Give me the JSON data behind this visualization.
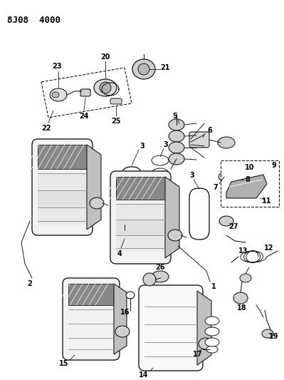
{
  "title": "8J08 4000",
  "bg_color": "#ffffff",
  "line_color": "#1a1a1a",
  "gray1": "#aaaaaa",
  "gray2": "#cccccc",
  "gray3": "#888888"
}
